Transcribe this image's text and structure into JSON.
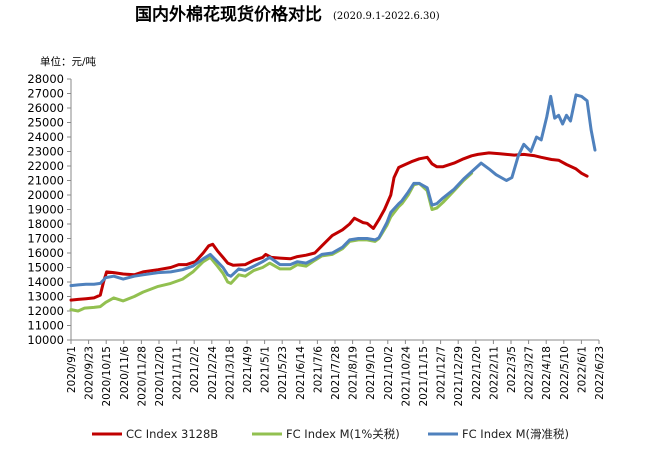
{
  "chart_data": {
    "type": "line",
    "title": "国内外棉花现货价格对比",
    "title_note": "(2020.9.1-2022.6.30)",
    "unit_label": "单位：元/吨",
    "xlabel": "",
    "ylabel": "",
    "ylim": [
      10000,
      28000
    ],
    "y_ticks": [
      10000,
      11000,
      12000,
      13000,
      14000,
      15000,
      16000,
      17000,
      18000,
      19000,
      20000,
      21000,
      22000,
      23000,
      24000,
      25000,
      26000,
      27000,
      28000
    ],
    "x_ticks": [
      "2020/9/1",
      "2020/9/23",
      "2020/10/15",
      "2020/11/6",
      "2020/11/28",
      "2020/12/20",
      "2021/1/11",
      "2021/2/2",
      "2021/2/24",
      "2021/3/18",
      "2021/4/9",
      "2021/5/1",
      "2021/5/23",
      "2021/6/14",
      "2021/7/6",
      "2021/7/28",
      "2021/8/19",
      "2021/9/10",
      "2021/10/2",
      "2021/10/24",
      "2021/11/15",
      "2021/12/7",
      "2021/12/29",
      "2022/1/20",
      "2022/2/11",
      "2022/3/5",
      "2022/3/27",
      "2022/4/18",
      "2022/5/10",
      "2022/6/1",
      "2022/6/23"
    ],
    "x_range": [
      "2020-09-01",
      "2022-06-30"
    ],
    "grid": false,
    "legend_position": "bottom",
    "series": [
      {
        "name": "CC Index 3128B",
        "color": "#c00000",
        "points": [
          [
            "2020-09-01",
            12750
          ],
          [
            "2020-09-10",
            12800
          ],
          [
            "2020-09-20",
            12850
          ],
          [
            "2020-09-30",
            12900
          ],
          [
            "2020-10-08",
            13100
          ],
          [
            "2020-10-12",
            14000
          ],
          [
            "2020-10-16",
            14700
          ],
          [
            "2020-10-25",
            14650
          ],
          [
            "2020-11-06",
            14550
          ],
          [
            "2020-11-20",
            14500
          ],
          [
            "2020-12-01",
            14700
          ],
          [
            "2020-12-20",
            14850
          ],
          [
            "2021-01-05",
            15000
          ],
          [
            "2021-01-15",
            15200
          ],
          [
            "2021-01-25",
            15200
          ],
          [
            "2021-02-05",
            15400
          ],
          [
            "2021-02-15",
            16000
          ],
          [
            "2021-02-22",
            16500
          ],
          [
            "2021-02-27",
            16600
          ],
          [
            "2021-03-05",
            16150
          ],
          [
            "2021-03-12",
            15700
          ],
          [
            "2021-03-18",
            15300
          ],
          [
            "2021-03-25",
            15150
          ],
          [
            "2021-04-09",
            15200
          ],
          [
            "2021-04-20",
            15500
          ],
          [
            "2021-05-01",
            15700
          ],
          [
            "2021-05-05",
            15900
          ],
          [
            "2021-05-12",
            15700
          ],
          [
            "2021-05-23",
            15650
          ],
          [
            "2021-06-05",
            15600
          ],
          [
            "2021-06-14",
            15750
          ],
          [
            "2021-06-25",
            15850
          ],
          [
            "2021-07-06",
            16000
          ],
          [
            "2021-07-15",
            16500
          ],
          [
            "2021-07-28",
            17200
          ],
          [
            "2021-08-10",
            17600
          ],
          [
            "2021-08-19",
            18000
          ],
          [
            "2021-08-25",
            18400
          ],
          [
            "2021-09-05",
            18100
          ],
          [
            "2021-09-10",
            18050
          ],
          [
            "2021-09-18",
            17700
          ],
          [
            "2021-09-25",
            18300
          ],
          [
            "2021-10-02",
            19000
          ],
          [
            "2021-10-10",
            20000
          ],
          [
            "2021-10-14",
            21200
          ],
          [
            "2021-10-20",
            21900
          ],
          [
            "2021-10-24",
            22000
          ],
          [
            "2021-11-05",
            22300
          ],
          [
            "2021-11-15",
            22500
          ],
          [
            "2021-11-25",
            22600
          ],
          [
            "2021-12-01",
            22150
          ],
          [
            "2021-12-07",
            21950
          ],
          [
            "2021-12-15",
            21950
          ],
          [
            "2021-12-29",
            22200
          ],
          [
            "2022-01-10",
            22500
          ],
          [
            "2022-01-20",
            22700
          ],
          [
            "2022-01-28",
            22800
          ],
          [
            "2022-02-11",
            22900
          ],
          [
            "2022-02-25",
            22850
          ],
          [
            "2022-03-05",
            22800
          ],
          [
            "2022-03-15",
            22750
          ],
          [
            "2022-03-27",
            22800
          ],
          [
            "2022-04-10",
            22700
          ],
          [
            "2022-04-18",
            22600
          ],
          [
            "2022-05-01",
            22450
          ],
          [
            "2022-05-10",
            22400
          ],
          [
            "2022-05-20",
            22100
          ],
          [
            "2022-06-01",
            21800
          ],
          [
            "2022-06-08",
            21500
          ],
          [
            "2022-06-15",
            21300
          ]
        ]
      },
      {
        "name": "FC Index M(1%关税)",
        "color": "#92c050",
        "points": [
          [
            "2020-09-01",
            12100
          ],
          [
            "2020-09-10",
            12000
          ],
          [
            "2020-09-18",
            12200
          ],
          [
            "2020-09-30",
            12250
          ],
          [
            "2020-10-08",
            12300
          ],
          [
            "2020-10-15",
            12600
          ],
          [
            "2020-10-25",
            12900
          ],
          [
            "2020-11-06",
            12700
          ],
          [
            "2020-11-20",
            13000
          ],
          [
            "2020-12-01",
            13300
          ],
          [
            "2020-12-20",
            13700
          ],
          [
            "2021-01-05",
            13900
          ],
          [
            "2021-01-20",
            14200
          ],
          [
            "2021-02-02",
            14700
          ],
          [
            "2021-02-15",
            15400
          ],
          [
            "2021-02-24",
            15700
          ],
          [
            "2021-03-05",
            15100
          ],
          [
            "2021-03-12",
            14600
          ],
          [
            "2021-03-18",
            14000
          ],
          [
            "2021-03-22",
            13900
          ],
          [
            "2021-04-01",
            14500
          ],
          [
            "2021-04-09",
            14400
          ],
          [
            "2021-04-20",
            14800
          ],
          [
            "2021-05-01",
            15000
          ],
          [
            "2021-05-10",
            15300
          ],
          [
            "2021-05-23",
            14900
          ],
          [
            "2021-06-05",
            14900
          ],
          [
            "2021-06-14",
            15200
          ],
          [
            "2021-06-25",
            15100
          ],
          [
            "2021-07-06",
            15500
          ],
          [
            "2021-07-15",
            15800
          ],
          [
            "2021-07-28",
            15900
          ],
          [
            "2021-08-10",
            16300
          ],
          [
            "2021-08-19",
            16800
          ],
          [
            "2021-08-30",
            16900
          ],
          [
            "2021-09-10",
            16900
          ],
          [
            "2021-09-20",
            16800
          ],
          [
            "2021-09-25",
            17000
          ],
          [
            "2021-10-05",
            17900
          ],
          [
            "2021-10-10",
            18500
          ],
          [
            "2021-10-20",
            19200
          ],
          [
            "2021-10-24",
            19400
          ],
          [
            "2021-11-01",
            20000
          ],
          [
            "2021-11-08",
            20700
          ],
          [
            "2021-11-15",
            20800
          ],
          [
            "2021-11-25",
            20300
          ],
          [
            "2021-12-01",
            19000
          ],
          [
            "2021-12-07",
            19100
          ],
          [
            "2021-12-15",
            19500
          ],
          [
            "2021-12-29",
            20300
          ],
          [
            "2022-01-10",
            21000
          ],
          [
            "2022-01-20",
            21500
          ]
        ]
      },
      {
        "name": "FC Index M(滑准税)",
        "color": "#4f81bd",
        "points": [
          [
            "2020-09-01",
            13750
          ],
          [
            "2020-09-10",
            13800
          ],
          [
            "2020-09-20",
            13850
          ],
          [
            "2020-09-30",
            13850
          ],
          [
            "2020-10-08",
            13900
          ],
          [
            "2020-10-15",
            14300
          ],
          [
            "2020-10-25",
            14400
          ],
          [
            "2020-11-06",
            14200
          ],
          [
            "2020-11-20",
            14400
          ],
          [
            "2020-12-01",
            14500
          ],
          [
            "2020-12-20",
            14650
          ],
          [
            "2021-01-05",
            14700
          ],
          [
            "2021-01-20",
            14850
          ],
          [
            "2021-02-02",
            15100
          ],
          [
            "2021-02-15",
            15600
          ],
          [
            "2021-02-24",
            15900
          ],
          [
            "2021-03-05",
            15400
          ],
          [
            "2021-03-12",
            15000
          ],
          [
            "2021-03-18",
            14500
          ],
          [
            "2021-03-22",
            14400
          ],
          [
            "2021-04-01",
            14900
          ],
          [
            "2021-04-09",
            14800
          ],
          [
            "2021-04-20",
            15100
          ],
          [
            "2021-05-01",
            15400
          ],
          [
            "2021-05-10",
            15700
          ],
          [
            "2021-05-23",
            15200
          ],
          [
            "2021-06-05",
            15200
          ],
          [
            "2021-06-14",
            15400
          ],
          [
            "2021-06-25",
            15300
          ],
          [
            "2021-07-06",
            15600
          ],
          [
            "2021-07-15",
            15900
          ],
          [
            "2021-07-28",
            16000
          ],
          [
            "2021-08-10",
            16400
          ],
          [
            "2021-08-19",
            16900
          ],
          [
            "2021-08-30",
            17000
          ],
          [
            "2021-09-10",
            17000
          ],
          [
            "2021-09-20",
            16900
          ],
          [
            "2021-09-25",
            17050
          ],
          [
            "2021-10-05",
            18100
          ],
          [
            "2021-10-10",
            18800
          ],
          [
            "2021-10-20",
            19400
          ],
          [
            "2021-10-24",
            19600
          ],
          [
            "2021-11-01",
            20200
          ],
          [
            "2021-11-08",
            20800
          ],
          [
            "2021-11-15",
            20800
          ],
          [
            "2021-11-25",
            20500
          ],
          [
            "2021-12-01",
            19300
          ],
          [
            "2021-12-07",
            19400
          ],
          [
            "2021-12-15",
            19800
          ],
          [
            "2021-12-29",
            20400
          ],
          [
            "2022-01-10",
            21100
          ],
          [
            "2022-01-20",
            21600
          ],
          [
            "2022-02-01",
            22200
          ],
          [
            "2022-02-11",
            21800
          ],
          [
            "2022-02-20",
            21400
          ],
          [
            "2022-03-05",
            21000
          ],
          [
            "2022-03-12",
            21200
          ],
          [
            "2022-03-20",
            22700
          ],
          [
            "2022-03-27",
            23500
          ],
          [
            "2022-04-05",
            23000
          ],
          [
            "2022-04-12",
            24000
          ],
          [
            "2022-04-18",
            23800
          ],
          [
            "2022-04-25",
            25400
          ],
          [
            "2022-04-30",
            26800
          ],
          [
            "2022-05-05",
            25300
          ],
          [
            "2022-05-10",
            25500
          ],
          [
            "2022-05-15",
            24900
          ],
          [
            "2022-05-20",
            25500
          ],
          [
            "2022-05-25",
            25100
          ],
          [
            "2022-06-01",
            26900
          ],
          [
            "2022-06-08",
            26800
          ],
          [
            "2022-06-15",
            26500
          ],
          [
            "2022-06-20",
            24500
          ],
          [
            "2022-06-25",
            23100
          ]
        ]
      }
    ]
  }
}
